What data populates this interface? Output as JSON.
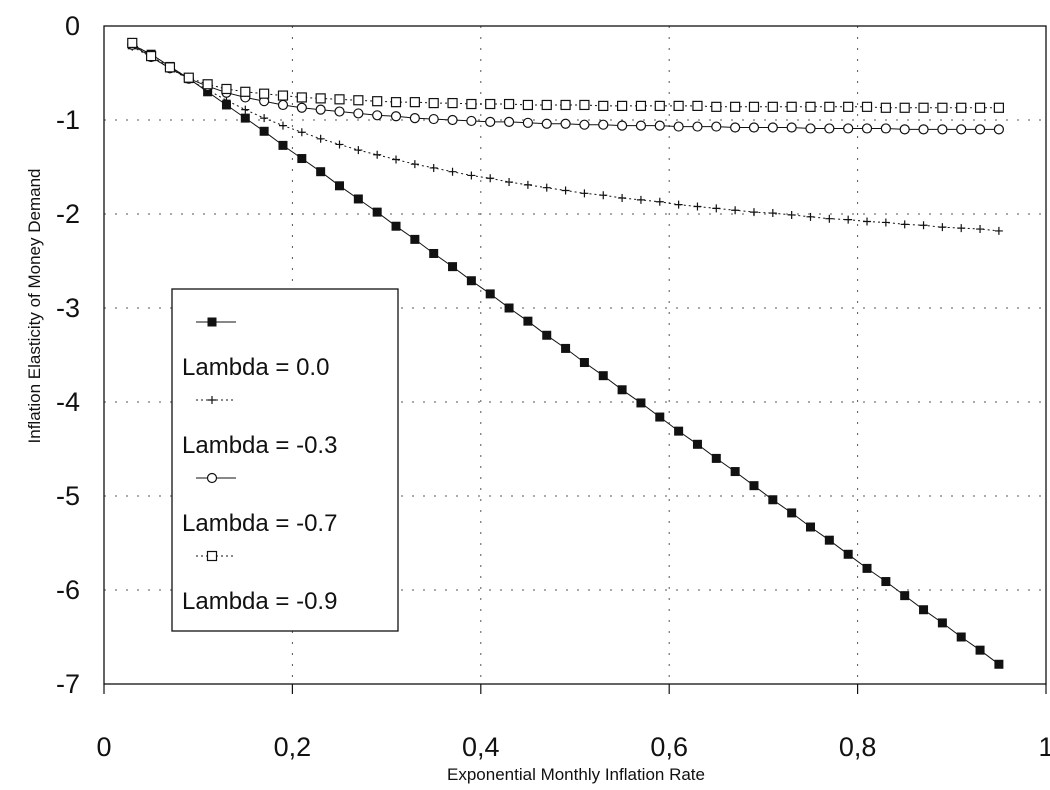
{
  "chart_data": {
    "type": "line",
    "title": "",
    "xlabel": "Exponential Monthly Inflation Rate",
    "ylabel": "Inflation Elasticity of Money Demand",
    "xlim": [
      0,
      1
    ],
    "ylim": [
      -7,
      0
    ],
    "x_ticks": [
      "0",
      "0,2",
      "0,4",
      "0,6",
      "0,8",
      "1"
    ],
    "y_ticks": [
      "0",
      "-1",
      "-2",
      "-3",
      "-4",
      "-5",
      "-6",
      "-7"
    ],
    "grid": true,
    "legend_position": "left-middle",
    "series": [
      {
        "name": "Lambda = 0.0",
        "marker": "filled-square",
        "line": "solid",
        "x": [
          0.03,
          0.05,
          0.07,
          0.09,
          0.11,
          0.13,
          0.15,
          0.17,
          0.19,
          0.21,
          0.23,
          0.25,
          0.27,
          0.29,
          0.31,
          0.33,
          0.35,
          0.37,
          0.39,
          0.41,
          0.43,
          0.45,
          0.47,
          0.49,
          0.51,
          0.53,
          0.55,
          0.57,
          0.59,
          0.61,
          0.63,
          0.65,
          0.67,
          0.69,
          0.71,
          0.73,
          0.75,
          0.77,
          0.79,
          0.81,
          0.83,
          0.85,
          0.87,
          0.89,
          0.91,
          0.93,
          0.95
        ],
        "y": [
          -0.2,
          -0.3,
          -0.43,
          -0.56,
          -0.7,
          -0.84,
          -0.98,
          -1.12,
          -1.27,
          -1.41,
          -1.55,
          -1.7,
          -1.84,
          -1.98,
          -2.13,
          -2.27,
          -2.42,
          -2.56,
          -2.71,
          -2.85,
          -3.0,
          -3.14,
          -3.29,
          -3.43,
          -3.58,
          -3.72,
          -3.87,
          -4.01,
          -4.16,
          -4.31,
          -4.45,
          -4.6,
          -4.74,
          -4.89,
          -5.04,
          -5.18,
          -5.33,
          -5.47,
          -5.62,
          -5.77,
          -5.91,
          -6.06,
          -6.21,
          -6.35,
          -6.5,
          -6.64,
          -6.79
        ]
      },
      {
        "name": "Lambda = -0.3",
        "marker": "plus",
        "line": "dotted",
        "x": [
          0.03,
          0.05,
          0.07,
          0.09,
          0.11,
          0.13,
          0.15,
          0.17,
          0.19,
          0.21,
          0.23,
          0.25,
          0.27,
          0.29,
          0.31,
          0.33,
          0.35,
          0.37,
          0.39,
          0.41,
          0.43,
          0.45,
          0.47,
          0.49,
          0.51,
          0.53,
          0.55,
          0.57,
          0.59,
          0.61,
          0.63,
          0.65,
          0.67,
          0.69,
          0.71,
          0.73,
          0.75,
          0.77,
          0.79,
          0.81,
          0.83,
          0.85,
          0.87,
          0.89,
          0.91,
          0.93,
          0.95
        ],
        "y": [
          -0.22,
          -0.33,
          -0.45,
          -0.57,
          -0.68,
          -0.79,
          -0.89,
          -0.98,
          -1.06,
          -1.13,
          -1.2,
          -1.26,
          -1.32,
          -1.37,
          -1.42,
          -1.47,
          -1.51,
          -1.55,
          -1.59,
          -1.62,
          -1.66,
          -1.69,
          -1.72,
          -1.75,
          -1.78,
          -1.8,
          -1.83,
          -1.85,
          -1.87,
          -1.9,
          -1.92,
          -1.94,
          -1.96,
          -1.98,
          -1.99,
          -2.01,
          -2.03,
          -2.05,
          -2.06,
          -2.08,
          -2.09,
          -2.11,
          -2.12,
          -2.14,
          -2.15,
          -2.16,
          -2.18
        ]
      },
      {
        "name": "Lambda = -0.7",
        "marker": "open-circle",
        "line": "solid",
        "x": [
          0.03,
          0.05,
          0.07,
          0.09,
          0.11,
          0.13,
          0.15,
          0.17,
          0.19,
          0.21,
          0.23,
          0.25,
          0.27,
          0.29,
          0.31,
          0.33,
          0.35,
          0.37,
          0.39,
          0.41,
          0.43,
          0.45,
          0.47,
          0.49,
          0.51,
          0.53,
          0.55,
          0.57,
          0.59,
          0.61,
          0.63,
          0.65,
          0.67,
          0.69,
          0.71,
          0.73,
          0.75,
          0.77,
          0.79,
          0.81,
          0.83,
          0.85,
          0.87,
          0.89,
          0.91,
          0.93,
          0.95
        ],
        "y": [
          -0.2,
          -0.33,
          -0.45,
          -0.56,
          -0.64,
          -0.71,
          -0.76,
          -0.8,
          -0.84,
          -0.87,
          -0.89,
          -0.91,
          -0.93,
          -0.95,
          -0.96,
          -0.98,
          -0.99,
          -1.0,
          -1.01,
          -1.02,
          -1.02,
          -1.03,
          -1.04,
          -1.04,
          -1.05,
          -1.05,
          -1.06,
          -1.06,
          -1.06,
          -1.07,
          -1.07,
          -1.07,
          -1.08,
          -1.08,
          -1.08,
          -1.08,
          -1.09,
          -1.09,
          -1.09,
          -1.09,
          -1.09,
          -1.1,
          -1.1,
          -1.1,
          -1.1,
          -1.1,
          -1.1
        ]
      },
      {
        "name": "Lambda = -0.9",
        "marker": "open-square",
        "line": "dotted",
        "x": [
          0.03,
          0.05,
          0.07,
          0.09,
          0.11,
          0.13,
          0.15,
          0.17,
          0.19,
          0.21,
          0.23,
          0.25,
          0.27,
          0.29,
          0.31,
          0.33,
          0.35,
          0.37,
          0.39,
          0.41,
          0.43,
          0.45,
          0.47,
          0.49,
          0.51,
          0.53,
          0.55,
          0.57,
          0.59,
          0.61,
          0.63,
          0.65,
          0.67,
          0.69,
          0.71,
          0.73,
          0.75,
          0.77,
          0.79,
          0.81,
          0.83,
          0.85,
          0.87,
          0.89,
          0.91,
          0.93,
          0.95
        ],
        "y": [
          -0.18,
          -0.32,
          -0.44,
          -0.55,
          -0.62,
          -0.67,
          -0.7,
          -0.72,
          -0.74,
          -0.76,
          -0.77,
          -0.78,
          -0.79,
          -0.8,
          -0.81,
          -0.81,
          -0.82,
          -0.82,
          -0.83,
          -0.83,
          -0.83,
          -0.84,
          -0.84,
          -0.84,
          -0.84,
          -0.85,
          -0.85,
          -0.85,
          -0.85,
          -0.85,
          -0.85,
          -0.86,
          -0.86,
          -0.86,
          -0.86,
          -0.86,
          -0.86,
          -0.86,
          -0.86,
          -0.86,
          -0.87,
          -0.87,
          -0.87,
          -0.87,
          -0.87,
          -0.87,
          -0.87
        ]
      }
    ]
  }
}
